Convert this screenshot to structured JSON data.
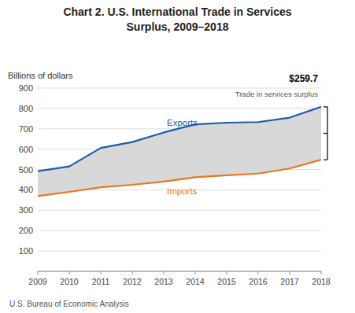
{
  "chart_data": {
    "type": "line",
    "title": "Chart 2. U.S. International Trade in Services",
    "subtitle": "Surplus, 2009–2018",
    "ylabel": "Billions of dollars",
    "source": "U.S. Bureau of Economic Analysis",
    "x": [
      2009,
      2010,
      2011,
      2012,
      2013,
      2014,
      2015,
      2016,
      2017,
      2018
    ],
    "series": [
      {
        "name": "Exports",
        "color": "#1F5DAB",
        "values": [
          492,
          515,
          606,
          635,
          682,
          722,
          730,
          733,
          755,
          808
        ]
      },
      {
        "name": "Imports",
        "color": "#E87722",
        "values": [
          369,
          390,
          413,
          425,
          441,
          462,
          472,
          480,
          505,
          548
        ]
      }
    ],
    "color": "#D8D8D8",
    "xlim": [
      2009,
      2018
    ],
    "xticks": [
      2009,
      2010,
      2011,
      2012,
      2013,
      2014,
      2015,
      2016,
      2017,
      2018
    ],
    "ylim": [
      0,
      900
    ],
    "yticks": [
      {
        "value": 0,
        "label": null
      },
      100,
      200,
      300,
      400,
      500,
      600,
      700,
      800,
      900
    ],
    "grid": true,
    "annotations": [
      {
        "text": "$259.7"
      },
      {
        "text": "Trade in services surplus"
      }
    ]
  }
}
